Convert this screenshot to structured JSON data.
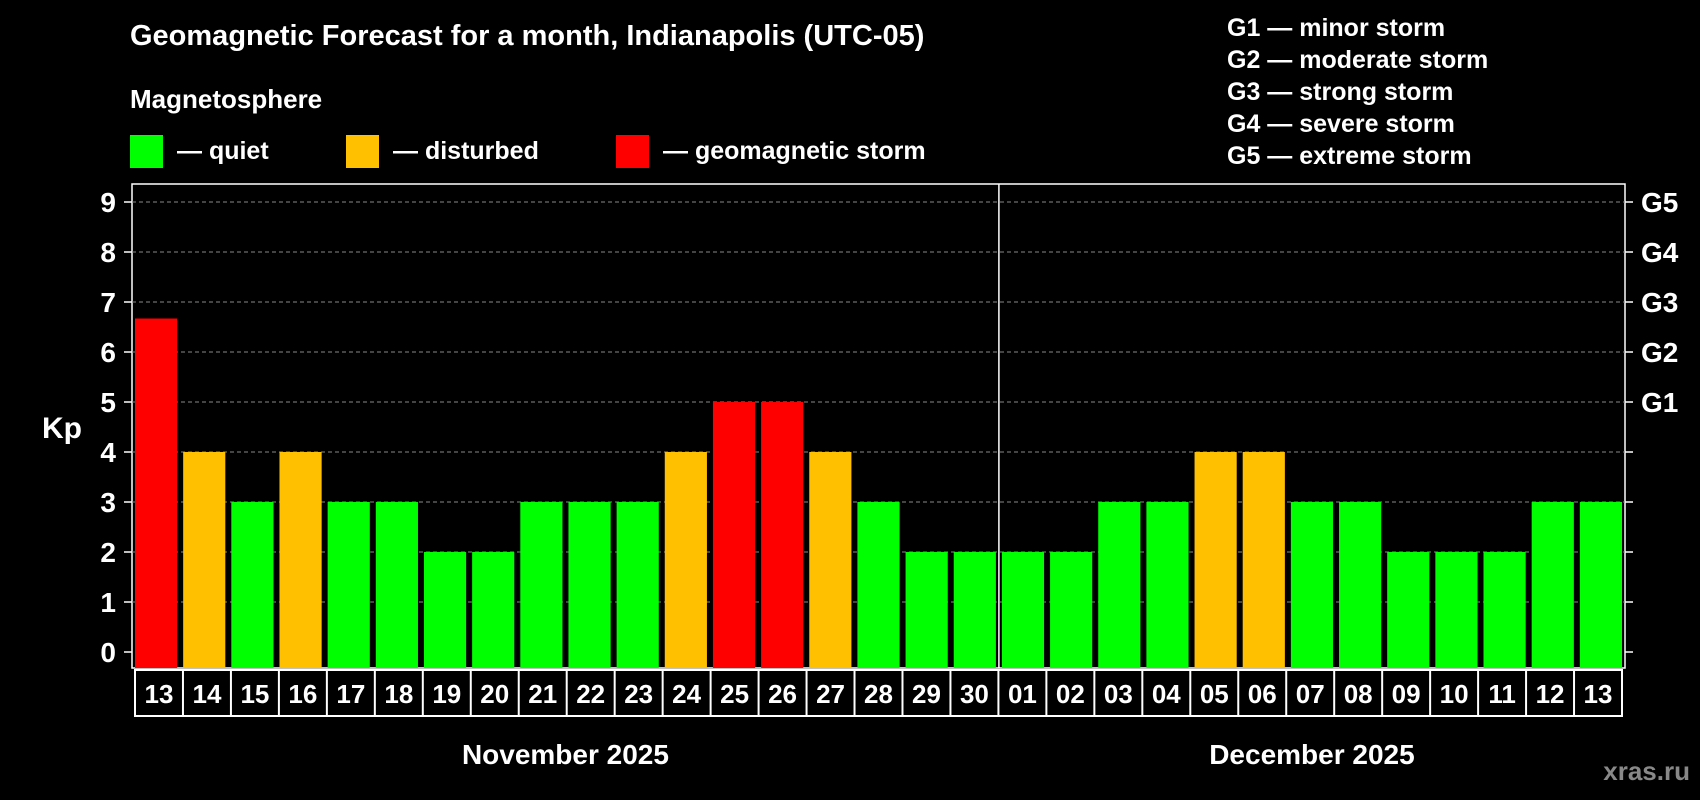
{
  "header": {
    "title": "Geomagnetic Forecast for a month, Indianapolis (UTC-05)",
    "subtitle": "Magnetosphere"
  },
  "legend": [
    {
      "label": "— quiet",
      "color": "#00ff00"
    },
    {
      "label": "— disturbed",
      "color": "#ffc000"
    },
    {
      "label": "— geomagnetic storm",
      "color": "#ff0000"
    }
  ],
  "g_legend": [
    "G1 — minor storm",
    "G2 — moderate storm",
    "G3 — strong storm",
    "G4 — severe storm",
    "G5 — extreme storm"
  ],
  "watermark": "xras.ru",
  "chart_data": {
    "type": "bar",
    "title": "Geomagnetic Forecast for a month, Indianapolis (UTC-05)",
    "ylabel": "Kp",
    "ylim": [
      0,
      9
    ],
    "yticks": [
      0,
      1,
      2,
      3,
      4,
      5,
      6,
      7,
      8,
      9
    ],
    "right_axis_labels": [
      {
        "value": 5,
        "label": "G1"
      },
      {
        "value": 6,
        "label": "G2"
      },
      {
        "value": 7,
        "label": "G3"
      },
      {
        "value": 8,
        "label": "G4"
      },
      {
        "value": 9,
        "label": "G5"
      }
    ],
    "colors": {
      "quiet": "#00ff00",
      "disturbed": "#ffc000",
      "storm": "#ff0000"
    },
    "categories": [
      "13",
      "14",
      "15",
      "16",
      "17",
      "18",
      "19",
      "20",
      "21",
      "22",
      "23",
      "24",
      "25",
      "26",
      "27",
      "28",
      "29",
      "30",
      "01",
      "02",
      "03",
      "04",
      "05",
      "06",
      "07",
      "08",
      "09",
      "10",
      "11",
      "12",
      "13"
    ],
    "values": [
      6.67,
      4,
      3,
      4,
      3,
      3,
      2,
      2,
      3,
      3,
      3,
      4,
      5,
      5,
      4,
      3,
      2,
      2,
      2,
      2,
      3,
      3,
      4,
      4,
      3,
      3,
      2,
      2,
      2,
      3,
      3
    ],
    "levels": [
      "storm",
      "disturbed",
      "quiet",
      "disturbed",
      "quiet",
      "quiet",
      "quiet",
      "quiet",
      "quiet",
      "quiet",
      "quiet",
      "disturbed",
      "storm",
      "storm",
      "disturbed",
      "quiet",
      "quiet",
      "quiet",
      "quiet",
      "quiet",
      "quiet",
      "quiet",
      "disturbed",
      "disturbed",
      "quiet",
      "quiet",
      "quiet",
      "quiet",
      "quiet",
      "quiet",
      "quiet"
    ],
    "months": [
      {
        "label": "November 2025",
        "count": 18
      },
      {
        "label": "December 2025",
        "count": 13
      }
    ],
    "grid": true
  }
}
